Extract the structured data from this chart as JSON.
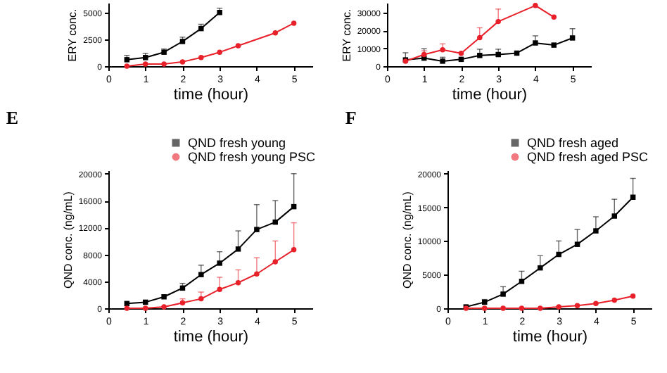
{
  "chart_data": [
    {
      "type": "line",
      "xlabel": "time (hour)",
      "ylabel": "ERY conc.",
      "xlim": [
        0,
        5.5
      ],
      "ylim": [
        0,
        5900
      ],
      "xticks": [
        0,
        1,
        2,
        3,
        4,
        5
      ],
      "yticks": [
        0,
        2500,
        5000
      ],
      "grid": false,
      "line_style": "solid",
      "series": [
        {
          "color": "#000000",
          "marker": "square",
          "x": [
            0.5,
            1,
            1.5,
            2,
            2.5,
            3
          ],
          "values": [
            600,
            800,
            1300,
            2300,
            3500,
            5000
          ],
          "errors": [
            [
              600,
              1000
            ],
            [
              800,
              1200
            ],
            [
              1300,
              1600
            ],
            [
              2300,
              2700
            ],
            [
              3500,
              3900
            ],
            [
              5000,
              5400
            ]
          ]
        },
        {
          "color": "#e8202a",
          "marker": "circle",
          "x": [
            0.5,
            1,
            1.5,
            2,
            2.5,
            3,
            3.5,
            4.5,
            5
          ],
          "values": [
            0,
            200,
            200,
            400,
            800,
            1300,
            1900,
            3100,
            4000
          ]
        }
      ]
    },
    {
      "type": "line",
      "xlabel": "time (hour)",
      "ylabel": "ERY conc.",
      "xlim": [
        0,
        5.5
      ],
      "ylim": [
        0,
        35500
      ],
      "xticks": [
        0,
        1,
        2,
        3,
        4,
        5
      ],
      "yticks": [
        0,
        10000,
        20000,
        30000
      ],
      "grid": false,
      "line_style": "solid",
      "series": [
        {
          "color": "#000000",
          "marker": "square",
          "x": [
            0.5,
            1,
            1.5,
            2,
            2.5,
            3,
            3.5,
            4,
            4.5,
            5
          ],
          "values": [
            3500,
            4500,
            2800,
            3800,
            6000,
            6500,
            7300,
            13000,
            11800,
            15800
          ],
          "errors": [
            [
              3500,
              7500
            ],
            [
              4500,
              9800
            ],
            [
              2800,
              5000
            ],
            null,
            [
              6000,
              9500
            ],
            [
              6500,
              9500
            ],
            null,
            [
              13000,
              17000
            ],
            null,
            [
              15800,
              21000
            ]
          ]
        },
        {
          "color": "#e8202a",
          "marker": "circle",
          "x": [
            0.5,
            1,
            1.5,
            2,
            2.5,
            3,
            4,
            4.5
          ],
          "values": [
            2800,
            6500,
            9200,
            7200,
            16000,
            25000,
            34000,
            27500
          ],
          "errors": [
            null,
            [
              6500,
              8600
            ],
            [
              9200,
              12500
            ],
            null,
            [
              16000,
              21500
            ],
            [
              25000,
              32000
            ],
            null,
            null
          ]
        }
      ]
    },
    {
      "type": "line",
      "title": "E",
      "xlabel": "time (hour)",
      "ylabel": "QND conc. (ng/mL)",
      "xlim": [
        0,
        5.5
      ],
      "ylim": [
        0,
        20500
      ],
      "xticks": [
        0,
        1,
        2,
        3,
        4,
        5
      ],
      "yticks": [
        0,
        4000,
        8000,
        12000,
        16000,
        20000
      ],
      "grid": false,
      "legend": "top right",
      "line_style": "solid",
      "series": [
        {
          "name": "QND fresh young",
          "color": "#000000",
          "marker": "square",
          "x": [
            0.5,
            1,
            1.5,
            2,
            2.5,
            3,
            3.5,
            4,
            4.5,
            5
          ],
          "values": [
            700,
            900,
            1700,
            3000,
            5000,
            6700,
            8800,
            11700,
            12800,
            15100
          ],
          "errors": [
            null,
            null,
            null,
            [
              3000,
              3700
            ],
            [
              5000,
              6400
            ],
            [
              6700,
              8400
            ],
            [
              8800,
              11500
            ],
            [
              11700,
              15400
            ],
            [
              12800,
              16000
            ],
            [
              15100,
              20000
            ]
          ]
        },
        {
          "name": "QND fresh young PSC",
          "color": "#e8202a",
          "marker": "circle",
          "x": [
            0.5,
            1,
            1.5,
            2,
            2.5,
            3,
            3.5,
            4,
            4.5,
            5
          ],
          "values": [
            0,
            0,
            200,
            800,
            1400,
            2800,
            3800,
            5100,
            6900,
            8700
          ],
          "errors": [
            null,
            null,
            null,
            [
              800,
              1400
            ],
            [
              1400,
              2400
            ],
            [
              2800,
              4600
            ],
            [
              3800,
              5700
            ],
            [
              5100,
              7500
            ],
            [
              6900,
              10000
            ],
            [
              8700,
              12700
            ]
          ]
        }
      ]
    },
    {
      "type": "line",
      "title": "F",
      "xlabel": "time (hour)",
      "ylabel": "QND conc. (ng/mL)",
      "xlim": [
        0,
        5.5
      ],
      "ylim": [
        0,
        20500
      ],
      "xticks": [
        0,
        1,
        2,
        3,
        4,
        5
      ],
      "yticks": [
        0,
        5000,
        10000,
        15000,
        20000
      ],
      "grid": false,
      "legend": "top right",
      "line_style": "solid",
      "series": [
        {
          "name": "QND fresh aged",
          "color": "#000000",
          "marker": "square",
          "x": [
            0.5,
            1,
            1.5,
            2,
            2.5,
            3,
            3.5,
            4,
            4.5,
            5
          ],
          "values": [
            200,
            900,
            2100,
            4000,
            6000,
            8000,
            9500,
            11500,
            13700,
            16500
          ],
          "errors": [
            null,
            [
              900,
              1300
            ],
            [
              2100,
              3200
            ],
            [
              4000,
              5500
            ],
            [
              6000,
              7800
            ],
            [
              8000,
              10000
            ],
            [
              9500,
              11700
            ],
            [
              11500,
              13600
            ],
            [
              13700,
              16200
            ],
            [
              16500,
              19300
            ]
          ]
        },
        {
          "name": "QND fresh aged PSC",
          "color": "#e8202a",
          "marker": "circle",
          "x": [
            0.5,
            1,
            1.5,
            2,
            2.5,
            3,
            3.5,
            4,
            4.5,
            5
          ],
          "values": [
            0,
            0,
            0,
            0,
            0,
            200,
            400,
            700,
            1200,
            1800
          ]
        }
      ]
    }
  ]
}
